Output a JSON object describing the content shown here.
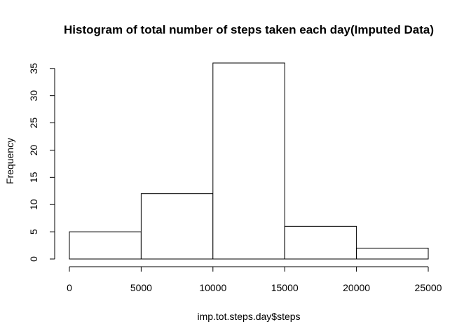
{
  "chart_data": {
    "type": "bar",
    "subtype": "histogram",
    "title": "Histogram of total number of steps taken each day(Imputed Data)",
    "xlabel": "imp.tot.steps.day$steps",
    "ylabel": "Frequency",
    "bins": [
      {
        "start": 0,
        "end": 5000,
        "count": 5
      },
      {
        "start": 5000,
        "end": 10000,
        "count": 12
      },
      {
        "start": 10000,
        "end": 15000,
        "count": 36
      },
      {
        "start": 15000,
        "end": 20000,
        "count": 6
      },
      {
        "start": 20000,
        "end": 25000,
        "count": 2
      }
    ],
    "xlim": [
      0,
      25000
    ],
    "ylim": [
      0,
      36
    ],
    "xticks": [
      0,
      5000,
      10000,
      15000,
      20000,
      25000
    ],
    "yticks": [
      0,
      5,
      10,
      15,
      20,
      25,
      30,
      35
    ],
    "grid": false,
    "legend": "none",
    "bar_fill": "#ffffff",
    "bar_stroke": "#000000"
  }
}
